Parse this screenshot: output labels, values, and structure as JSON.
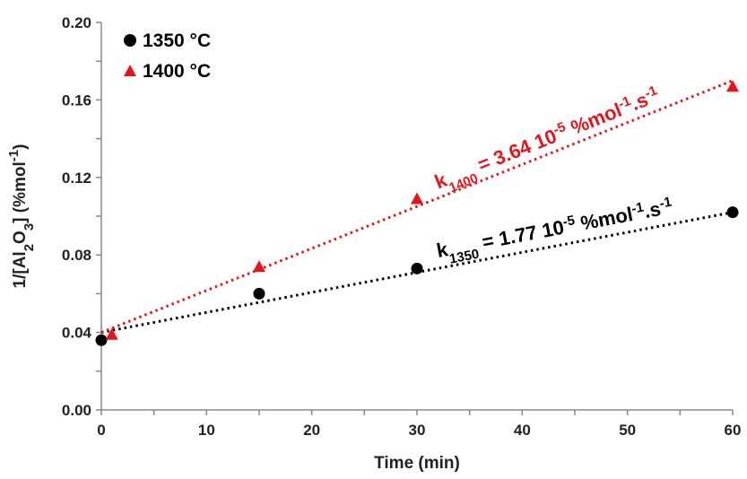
{
  "chart_data": {
    "type": "scatter",
    "xlabel": "Time (min)",
    "ylabel_parts": {
      "main": "1/[Al",
      "sub1": "2",
      "mid": "O",
      "sub2": "3",
      "rest": "] (%mol",
      "sup": "-1",
      "end": ")"
    },
    "xlim": [
      0,
      60
    ],
    "ylim": [
      0,
      0.2
    ],
    "xticks": [
      0,
      10,
      20,
      30,
      40,
      50,
      60
    ],
    "yticks": [
      0,
      0.04,
      0.08,
      0.12,
      0.16,
      0.2
    ],
    "xtick_labels": [
      "0",
      "10",
      "20",
      "30",
      "40",
      "50",
      "60"
    ],
    "ytick_labels": [
      "0.00",
      "0.04",
      "0.08",
      "0.12",
      "0.16",
      "0.20"
    ],
    "grid": false,
    "legend_position": "top-left",
    "series": [
      {
        "name": "1350 °C",
        "marker": "circle",
        "color": "#000000",
        "x": [
          0,
          15,
          30,
          60
        ],
        "y": [
          0.036,
          0.06,
          0.073,
          0.102
        ],
        "fit": {
          "x": [
            0,
            60
          ],
          "y": [
            0.04,
            0.102
          ]
        },
        "annotation": {
          "k": "k",
          "k_sub": "1350",
          "eq": " = 1.77 10",
          "exp": "-5",
          "unit": " %mol",
          "unit_sup": "-1",
          "tail": ".s",
          "tail_sup": "-1"
        }
      },
      {
        "name": "1400 °C",
        "marker": "triangle",
        "color": "#e8141b",
        "x": [
          1,
          15,
          30,
          60
        ],
        "y": [
          0.039,
          0.074,
          0.109,
          0.167
        ],
        "fit": {
          "x": [
            0,
            60
          ],
          "y": [
            0.04,
            0.17
          ]
        },
        "annotation": {
          "k": "k",
          "k_sub": "1400",
          "eq": " = 3.64 10",
          "exp": "-5",
          "unit": " %mol",
          "unit_sup": "-1",
          "tail": ".s",
          "tail_sup": "-1"
        }
      }
    ]
  }
}
